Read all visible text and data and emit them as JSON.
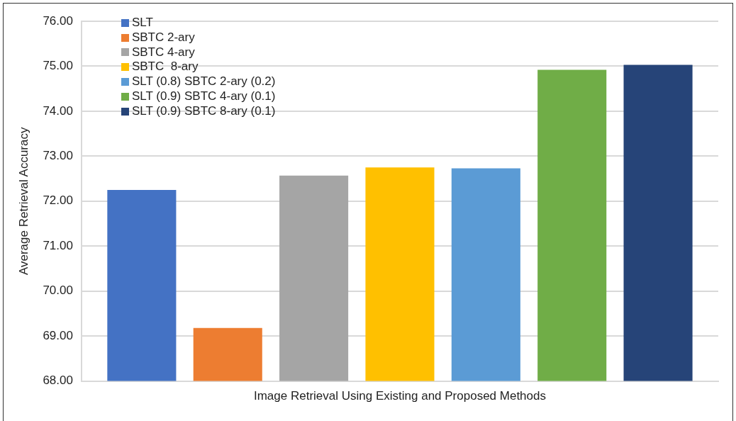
{
  "chart_data": {
    "type": "bar",
    "xlabel": "Image Retrieval Using Existing and Proposed Methods",
    "ylabel": "Average Retrieval Accuracy",
    "categories": [
      null
    ],
    "series": [
      {
        "name": "SLT",
        "color": "#4472c4",
        "values": [
          72.25
        ]
      },
      {
        "name": "SBTC 2-ary",
        "color": "#ed7d31",
        "values": [
          69.18
        ]
      },
      {
        "name": "SBTC 4-ary",
        "color": "#a5a5a5",
        "values": [
          72.57
        ]
      },
      {
        "name": "SBTC  8-ary",
        "color": "#ffc000",
        "values": [
          72.75
        ]
      },
      {
        "name": "SLT (0.8) SBTC 2-ary (0.2)",
        "color": "#5b9bd5",
        "values": [
          72.73
        ]
      },
      {
        "name": "SLT (0.9) SBTC 4-ary (0.1)",
        "color": "#70ad47",
        "values": [
          74.92
        ]
      },
      {
        "name": "SLT (0.9) SBTC 8-ary (0.1)",
        "color": "#264478",
        "values": [
          75.03
        ]
      }
    ],
    "ylim": [
      68,
      76
    ],
    "yticks": [
      {
        "value": 68,
        "label": "68.00"
      },
      {
        "value": 69,
        "label": "69.00"
      },
      {
        "value": 70,
        "label": "70.00"
      },
      {
        "value": 71,
        "label": "71.00"
      },
      {
        "value": 72,
        "label": "72.00"
      },
      {
        "value": 73,
        "label": "73.00"
      },
      {
        "value": 74,
        "label": "74.00"
      },
      {
        "value": 75,
        "label": "75.00"
      },
      {
        "value": 76,
        "label": "76.00"
      }
    ],
    "grid": "y",
    "legend": "top left"
  }
}
